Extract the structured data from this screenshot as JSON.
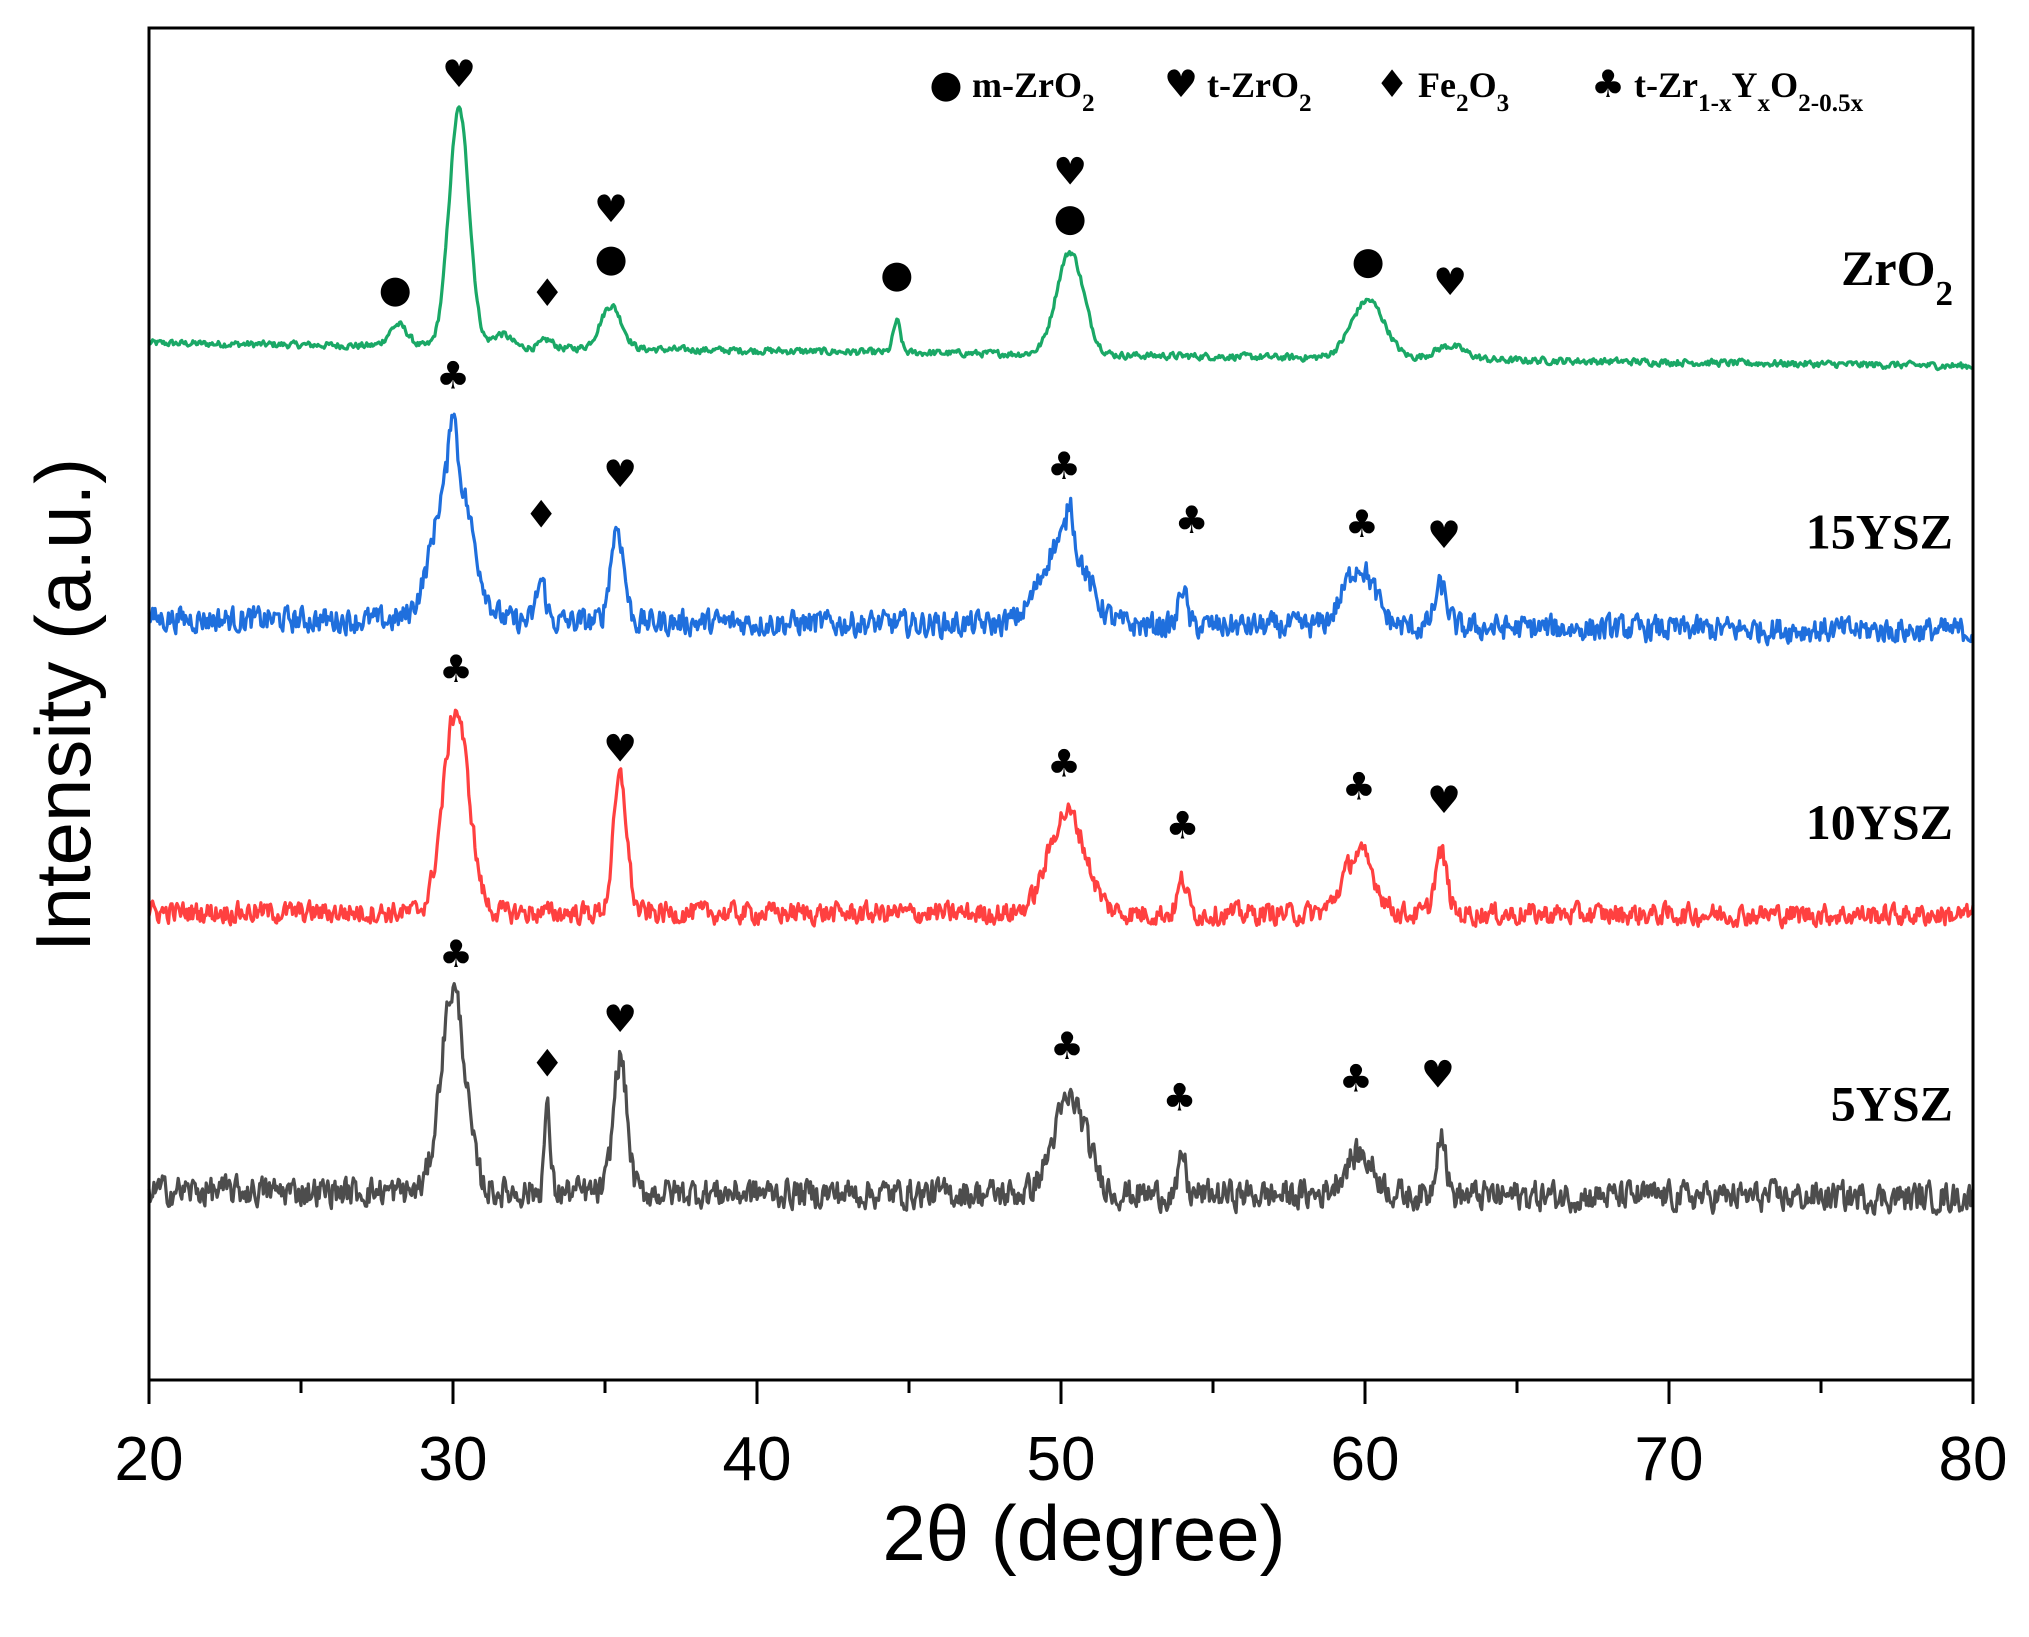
{
  "chart_data": {
    "type": "line",
    "title": "",
    "xlabel": "2θ (degree)",
    "ylabel": "Intensity (a.u.)",
    "xlim": [
      20,
      80
    ],
    "ylim": [
      0,
      100
    ],
    "xticks": [
      20,
      30,
      40,
      50,
      60,
      70,
      80
    ],
    "xticks_minor": [
      25,
      35,
      45,
      55,
      65,
      75
    ],
    "yticks": [],
    "grid": false,
    "legend_position": "top-right",
    "symbols": {
      "circle": "●",
      "heart": "♥",
      "diamond": "♦",
      "club": "♣"
    },
    "legend": [
      {
        "symbol": "circle",
        "parts": [
          {
            "t": "m-ZrO"
          },
          {
            "t": "2",
            "sub": true
          }
        ]
      },
      {
        "symbol": "heart",
        "parts": [
          {
            "t": "t-ZrO"
          },
          {
            "t": "2",
            "sub": true
          }
        ]
      },
      {
        "symbol": "diamond",
        "parts": [
          {
            "t": "Fe"
          },
          {
            "t": "2",
            "sub": true
          },
          {
            "t": "O"
          },
          {
            "t": "3",
            "sub": true
          }
        ]
      },
      {
        "symbol": "club",
        "parts": [
          {
            "t": "t-Zr"
          },
          {
            "t": "1-x",
            "sub": true
          },
          {
            "t": "Y"
          },
          {
            "t": "x",
            "sub": true
          },
          {
            "t": "O"
          },
          {
            "t": "2-0.5x",
            "sub": true
          }
        ]
      }
    ],
    "series": [
      {
        "name": "ZrO2",
        "label_parts": [
          {
            "t": "ZrO"
          },
          {
            "t": "2",
            "sub": true
          }
        ],
        "label_y": 81,
        "color": "#1aa866",
        "baseline": [
          76.7,
          75.0
        ],
        "noise": 0.35,
        "peaks": [
          [
            28.2,
            1.6,
            0.3
          ],
          [
            30.2,
            17.6,
            0.33
          ],
          [
            31.6,
            1.0,
            0.3
          ],
          [
            33.1,
            0.6,
            0.2
          ],
          [
            35.2,
            3.2,
            0.35
          ],
          [
            44.6,
            2.3,
            0.12
          ],
          [
            50.3,
            7.6,
            0.45
          ],
          [
            60.1,
            4.3,
            0.55
          ],
          [
            62.8,
            1.0,
            0.5
          ]
        ],
        "markers": [
          [
            "circle",
            28.1,
            80.7
          ],
          [
            "heart",
            30.2,
            96.6
          ],
          [
            "diamond",
            33.1,
            80.4
          ],
          [
            "heart",
            35.2,
            86.6
          ],
          [
            "circle",
            35.2,
            83.0
          ],
          [
            "circle",
            44.6,
            81.8
          ],
          [
            "heart",
            50.3,
            89.4
          ],
          [
            "circle",
            50.3,
            86.0
          ],
          [
            "circle",
            60.1,
            82.8
          ],
          [
            "heart",
            62.8,
            81.2
          ]
        ]
      },
      {
        "name": "15YSZ",
        "label_parts": [
          {
            "t": "15YSZ"
          }
        ],
        "label_y": 61.5,
        "color": "#1f6fdd",
        "baseline": [
          56.3,
          55.4
        ],
        "noise": 1.3,
        "peaks": [
          [
            30.0,
            11.5,
            0.6
          ],
          [
            30.0,
            4.5,
            0.1
          ],
          [
            32.9,
            3.0,
            0.15
          ],
          [
            35.4,
            7.0,
            0.22
          ],
          [
            50.1,
            6.5,
            0.7
          ],
          [
            50.3,
            3.0,
            0.1
          ],
          [
            54.0,
            3.0,
            0.12
          ],
          [
            59.8,
            4.5,
            0.5
          ],
          [
            62.5,
            3.0,
            0.2
          ]
        ],
        "markers": [
          [
            "club",
            30.0,
            74.3
          ],
          [
            "diamond",
            32.9,
            64.0
          ],
          [
            "heart",
            35.5,
            67.0
          ],
          [
            "club",
            50.1,
            67.6
          ],
          [
            "club",
            54.3,
            63.6
          ],
          [
            "club",
            59.9,
            63.3
          ],
          [
            "heart",
            62.6,
            62.5
          ]
        ]
      },
      {
        "name": "10YSZ",
        "label_parts": [
          {
            "t": "10YSZ"
          }
        ],
        "label_y": 40,
        "color": "#ff4040",
        "baseline": [
          34.6,
          34.4
        ],
        "noise": 1.1,
        "peaks": [
          [
            30.1,
            15.0,
            0.42
          ],
          [
            35.5,
            10.0,
            0.22
          ],
          [
            50.2,
            7.5,
            0.6
          ],
          [
            54.0,
            2.5,
            0.15
          ],
          [
            59.8,
            4.5,
            0.5
          ],
          [
            62.5,
            4.5,
            0.2
          ]
        ],
        "markers": [
          [
            "club",
            30.1,
            52.6
          ],
          [
            "heart",
            35.5,
            46.7
          ],
          [
            "club",
            50.1,
            45.6
          ],
          [
            "club",
            54.0,
            41.0
          ],
          [
            "club",
            59.8,
            43.9
          ],
          [
            "heart",
            62.6,
            42.9
          ]
        ]
      },
      {
        "name": "5YSZ",
        "label_parts": [
          {
            "t": "5YSZ"
          }
        ],
        "label_y": 19.2,
        "color": "#4d4d4d",
        "baseline": [
          14.0,
          13.5
        ],
        "noise": 1.5,
        "peaks": [
          [
            30.0,
            15.0,
            0.4
          ],
          [
            33.1,
            6.0,
            0.1
          ],
          [
            35.5,
            10.0,
            0.22
          ],
          [
            50.3,
            7.0,
            0.55
          ],
          [
            54.0,
            3.0,
            0.1
          ],
          [
            59.8,
            3.0,
            0.5
          ],
          [
            62.5,
            5.0,
            0.15
          ]
        ],
        "markers": [
          [
            "club",
            30.1,
            31.5
          ],
          [
            "diamond",
            33.1,
            23.4
          ],
          [
            "heart",
            35.5,
            26.7
          ],
          [
            "club",
            50.2,
            24.7
          ],
          [
            "club",
            53.9,
            20.9
          ],
          [
            "club",
            59.7,
            22.3
          ],
          [
            "heart",
            62.4,
            22.6
          ]
        ]
      }
    ]
  }
}
